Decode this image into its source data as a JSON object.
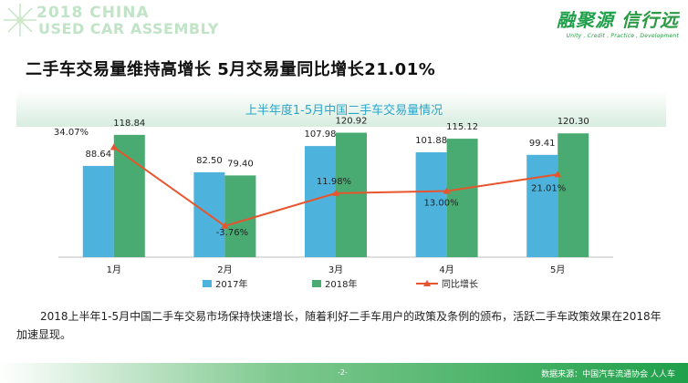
{
  "header": {
    "banner_line1": "2018 CHINA",
    "banner_line2": "USED CAR ASSEMBLY",
    "brand_name_primary": "融聚源",
    "brand_name_secondary": "信行远",
    "brand_tagline": "Unity , Credit , Practice , Development"
  },
  "headline": "二手车交易量维持高增长  5月交易量同比增长21.01%",
  "colors": {
    "bar_2017": "#4db3dc",
    "bar_2018": "#4aab72",
    "growth_line": "#e8542c",
    "title": "#2aa6c9",
    "footer_green": "#1fa04a"
  },
  "chart_data": {
    "type": "bar",
    "title": "上半年度1-5月中国二手车交易量情况",
    "categories": [
      "1月",
      "2月",
      "3月",
      "4月",
      "5月"
    ],
    "series": [
      {
        "name": "2017年",
        "type": "bar",
        "values": [
          88.64,
          82.5,
          107.98,
          101.88,
          99.41
        ],
        "labels": [
          "88.64",
          "82.50",
          "107.98",
          "101.88",
          "99.41"
        ]
      },
      {
        "name": "2018年",
        "type": "bar",
        "values": [
          118.84,
          79.4,
          120.92,
          115.12,
          120.3
        ],
        "labels": [
          "118.84",
          "79.40",
          "120.92",
          "115.12",
          "120.30"
        ]
      },
      {
        "name": "同比增长",
        "type": "line",
        "values": [
          34.07,
          -3.76,
          11.98,
          13.0,
          21.01
        ],
        "labels": [
          "34.07%",
          "-3.76%",
          "11.98%",
          "13.00%",
          "21.01%"
        ]
      }
    ],
    "ylim": [
      0,
      140
    ],
    "y2lim": [
      -10,
      40
    ],
    "grid": false,
    "legend_position": "bottom"
  },
  "description": "2018上半年1-5月中国二手车交易市场保持快速增长，随着利好二手车用户的政策及条例的颁布，活跃二手车政策效果在2018年加速显现。",
  "footer": {
    "page_number": "-2-",
    "source": "数据来源：中国汽车流通协会    人人车"
  }
}
